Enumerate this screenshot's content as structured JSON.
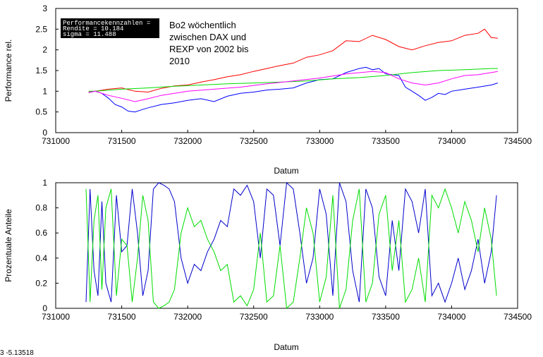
{
  "chart_data": [
    {
      "type": "line",
      "ylabel": "Performance rel.",
      "xlabel": "",
      "xlim": [
        731000,
        734500
      ],
      "ylim": [
        0,
        3
      ],
      "x_ticks": [
        "731000",
        "731500",
        "732000",
        "732500",
        "733000",
        "733500",
        "734000",
        "734500"
      ],
      "y_ticks": [
        "0",
        "0.5",
        "1",
        "1.5",
        "2",
        "2.5",
        "3"
      ],
      "grid": false,
      "stats_box": [
        "Performancekennzahlen =",
        "Rendite =  10.184",
        "sigma =  11.488"
      ],
      "annotation": [
        "Bo2 wöchentlich",
        "zwischen DAX und",
        "REXP von 2002 bis",
        "2010"
      ],
      "series": [
        {
          "color": "#ff0000",
          "x": [
            731250,
            731300,
            731400,
            731500,
            731600,
            731700,
            731800,
            731900,
            732000,
            732100,
            732200,
            732300,
            732400,
            732500,
            732600,
            732700,
            732800,
            732900,
            733000,
            733100,
            733200,
            733300,
            733400,
            733500,
            733600,
            733700,
            733800,
            733900,
            734000,
            734100,
            734200,
            734250,
            734300,
            734350
          ],
          "y": [
            0.98,
            1.0,
            1.05,
            1.08,
            1.0,
            0.98,
            1.07,
            1.13,
            1.15,
            1.22,
            1.28,
            1.35,
            1.4,
            1.48,
            1.55,
            1.62,
            1.68,
            1.82,
            1.88,
            1.98,
            2.22,
            2.2,
            2.35,
            2.25,
            2.08,
            2.0,
            2.1,
            2.18,
            2.22,
            2.35,
            2.4,
            2.5,
            2.3,
            2.28
          ]
        },
        {
          "color": "#0000ff",
          "x": [
            731250,
            731300,
            731350,
            731400,
            731450,
            731500,
            731550,
            731600,
            731650,
            731700,
            731800,
            731900,
            732000,
            732100,
            732200,
            732300,
            732400,
            732500,
            732600,
            732700,
            732800,
            732900,
            733000,
            733100,
            733200,
            733300,
            733350,
            733400,
            733450,
            733500,
            733600,
            733650,
            733700,
            733750,
            733800,
            733850,
            733900,
            733950,
            734000,
            734100,
            734200,
            734300,
            734350
          ],
          "y": [
            0.97,
            1.0,
            0.95,
            0.83,
            0.68,
            0.62,
            0.52,
            0.5,
            0.55,
            0.6,
            0.68,
            0.72,
            0.78,
            0.82,
            0.75,
            0.88,
            0.95,
            0.98,
            1.03,
            1.05,
            1.08,
            1.2,
            1.28,
            1.3,
            1.45,
            1.55,
            1.58,
            1.52,
            1.55,
            1.42,
            1.38,
            1.1,
            1.0,
            0.9,
            0.78,
            0.85,
            0.95,
            0.92,
            1.0,
            1.05,
            1.1,
            1.15,
            1.2
          ]
        },
        {
          "color": "#00dd00",
          "x": [
            731250,
            731300,
            731500,
            731700,
            731900,
            732100,
            732300,
            732500,
            732700,
            732900,
            733100,
            733300,
            733500,
            733700,
            733900,
            734100,
            734300,
            734350
          ],
          "y": [
            1.0,
            1.0,
            1.05,
            1.08,
            1.12,
            1.15,
            1.18,
            1.2,
            1.22,
            1.25,
            1.3,
            1.33,
            1.38,
            1.45,
            1.5,
            1.52,
            1.55,
            1.55
          ]
        },
        {
          "color": "#ff00ff",
          "x": [
            731250,
            731300,
            731400,
            731500,
            731600,
            731700,
            731800,
            731900,
            732000,
            732200,
            732400,
            732600,
            732800,
            733000,
            733200,
            733400,
            733500,
            733600,
            733700,
            733800,
            733900,
            734000,
            734100,
            734200,
            734300,
            734350
          ],
          "y": [
            0.97,
            1.0,
            0.9,
            0.83,
            0.75,
            0.82,
            0.9,
            0.95,
            1.0,
            1.05,
            1.1,
            1.18,
            1.25,
            1.32,
            1.42,
            1.48,
            1.45,
            1.3,
            1.2,
            1.15,
            1.2,
            1.3,
            1.38,
            1.4,
            1.45,
            1.48
          ]
        }
      ]
    },
    {
      "type": "line",
      "ylabel": "Prozentuale Anteile",
      "xlabel": "Datum",
      "xlim": [
        731000,
        734500
      ],
      "ylim": [
        0,
        1
      ],
      "x_ticks": [
        "731000",
        "731500",
        "732000",
        "732500",
        "733000",
        "733500",
        "734000",
        "734500"
      ],
      "y_ticks": [
        "0",
        "0.2",
        "0.4",
        "0.6",
        "0.8",
        "1"
      ],
      "grid": false,
      "series": [
        {
          "color": "#0000cc",
          "x": [
            731230,
            731260,
            731290,
            731320,
            731350,
            731380,
            731420,
            731460,
            731500,
            731540,
            731580,
            731620,
            731660,
            731700,
            731740,
            731780,
            731820,
            731860,
            731900,
            731950,
            732000,
            732050,
            732100,
            732150,
            732200,
            732250,
            732300,
            732350,
            732400,
            732450,
            732500,
            732550,
            732600,
            732650,
            732700,
            732750,
            732800,
            732850,
            732900,
            732950,
            733000,
            733050,
            733100,
            733150,
            733200,
            733250,
            733300,
            733350,
            733400,
            733450,
            733500,
            733550,
            733600,
            733650,
            733700,
            733750,
            733800,
            733850,
            733900,
            733950,
            734000,
            734050,
            734100,
            734150,
            734200,
            734250,
            734300,
            734340
          ],
          "y": [
            0.05,
            0.95,
            0.3,
            0.1,
            0.85,
            0.2,
            0.05,
            0.9,
            0.45,
            0.5,
            0.95,
            0.6,
            0.1,
            0.3,
            0.95,
            1.0,
            0.98,
            0.95,
            0.85,
            0.4,
            0.2,
            0.35,
            0.3,
            0.45,
            0.55,
            0.7,
            0.65,
            0.95,
            0.9,
            0.98,
            0.85,
            0.4,
            0.95,
            0.9,
            0.5,
            1.0,
            0.95,
            0.6,
            0.2,
            0.4,
            0.95,
            0.75,
            0.1,
            1.0,
            0.85,
            0.3,
            0.05,
            0.95,
            0.8,
            0.25,
            0.1,
            0.7,
            0.3,
            0.95,
            0.85,
            0.6,
            0.95,
            0.1,
            0.2,
            0.05,
            0.2,
            0.4,
            0.15,
            0.3,
            0.55,
            0.2,
            0.45,
            0.9
          ]
        },
        {
          "color": "#00dd00",
          "x": [
            731230,
            731260,
            731290,
            731320,
            731350,
            731380,
            731420,
            731460,
            731500,
            731540,
            731580,
            731620,
            731660,
            731700,
            731740,
            731780,
            731820,
            731860,
            731900,
            731950,
            732000,
            732050,
            732100,
            732150,
            732200,
            732250,
            732300,
            732350,
            732400,
            732450,
            732500,
            732550,
            732600,
            732650,
            732700,
            732750,
            732800,
            732850,
            732900,
            732950,
            733000,
            733050,
            733100,
            733150,
            733200,
            733250,
            733300,
            733350,
            733400,
            733450,
            733500,
            733550,
            733600,
            733650,
            733700,
            733750,
            733800,
            733850,
            733900,
            733950,
            734000,
            734050,
            734100,
            734150,
            734200,
            734250,
            734300,
            734340
          ],
          "y": [
            0.95,
            0.05,
            0.7,
            0.9,
            0.15,
            0.8,
            0.95,
            0.1,
            0.55,
            0.5,
            0.05,
            0.4,
            0.9,
            0.7,
            0.05,
            0.0,
            0.02,
            0.05,
            0.15,
            0.6,
            0.8,
            0.65,
            0.7,
            0.55,
            0.45,
            0.3,
            0.35,
            0.05,
            0.1,
            0.02,
            0.15,
            0.6,
            0.05,
            0.1,
            0.5,
            0.0,
            0.05,
            0.4,
            0.8,
            0.6,
            0.05,
            0.25,
            0.9,
            0.0,
            0.15,
            0.7,
            0.95,
            0.05,
            0.2,
            0.75,
            0.9,
            0.3,
            0.7,
            0.05,
            0.15,
            0.4,
            0.05,
            0.9,
            0.8,
            0.95,
            0.8,
            0.6,
            0.85,
            0.7,
            0.45,
            0.8,
            0.55,
            0.1
          ]
        }
      ]
    }
  ],
  "top_xlabel": "Datum",
  "corner_text": "3   -5.13518"
}
